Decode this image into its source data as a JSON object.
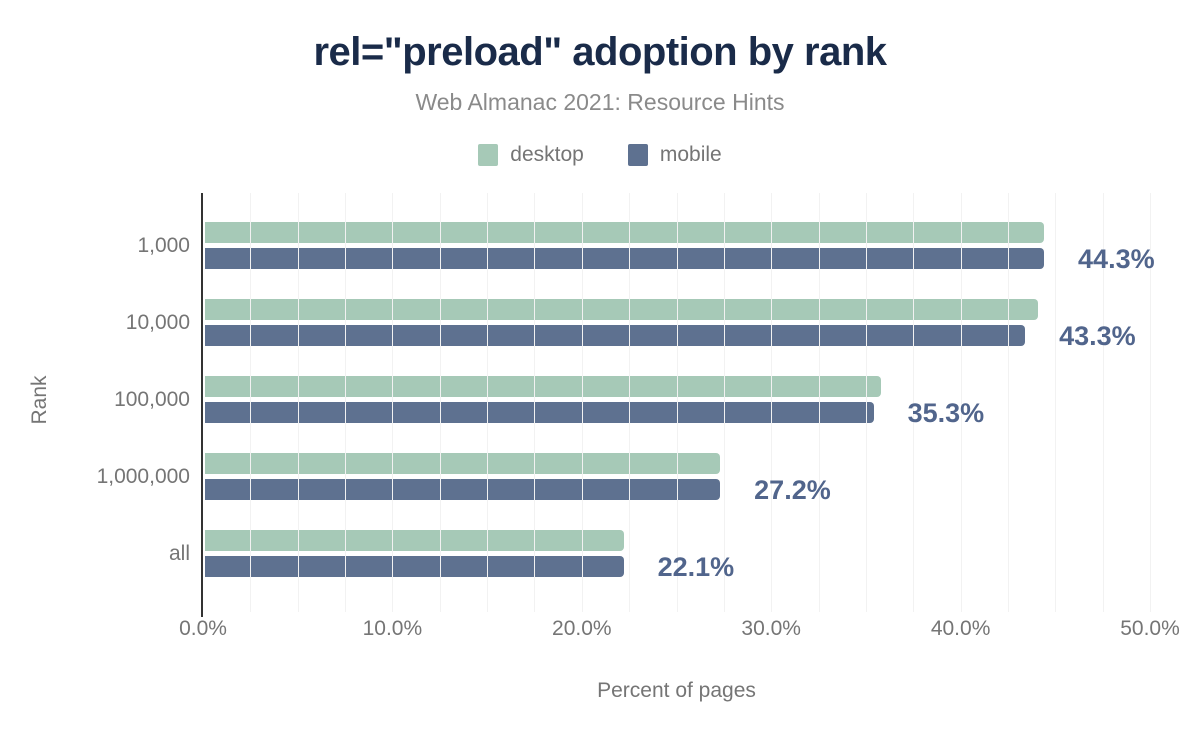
{
  "header": {
    "title": "rel=\"preload\" adoption by rank",
    "subtitle": "Web Almanac 2021: Resource Hints"
  },
  "legend": {
    "items": [
      {
        "label": "desktop",
        "color": "#a6c9b7"
      },
      {
        "label": "mobile",
        "color": "#5e7190"
      }
    ]
  },
  "chart_data": {
    "type": "bar",
    "orientation": "horizontal",
    "title": "rel=\"preload\" adoption by rank",
    "subtitle": "Web Almanac 2021: Resource Hints",
    "xlabel": "Percent of pages",
    "ylabel": "Rank",
    "xlim": [
      0,
      50
    ],
    "x_tick_values": [
      0,
      10,
      20,
      30,
      40,
      50
    ],
    "x_tick_labels": [
      "0.0%",
      "10.0%",
      "20.0%",
      "30.0%",
      "40.0%",
      "50.0%"
    ],
    "grid": "minor-vertical",
    "grid_step": 2.5,
    "legend_position": "top",
    "categories": [
      "1,000",
      "10,000",
      "100,000",
      "1,000,000",
      "all"
    ],
    "series": [
      {
        "name": "desktop",
        "color": "#a6c9b7",
        "values": [
          44.3,
          44.0,
          35.7,
          27.2,
          22.1
        ]
      },
      {
        "name": "mobile",
        "color": "#5e7190",
        "values": [
          44.3,
          43.3,
          35.3,
          27.2,
          22.1
        ]
      }
    ],
    "annotations": {
      "labels": [
        "44.3%",
        "43.3%",
        "35.3%",
        "27.2%",
        "22.1%"
      ],
      "series_annotated": "mobile",
      "color": "#51658c"
    },
    "colors": {
      "axis_line": "#333333",
      "gridline": "#f2f2f2",
      "tick_text": "#757575",
      "title_text": "#1a2b49",
      "subtitle_text": "#8a8a8a"
    }
  }
}
